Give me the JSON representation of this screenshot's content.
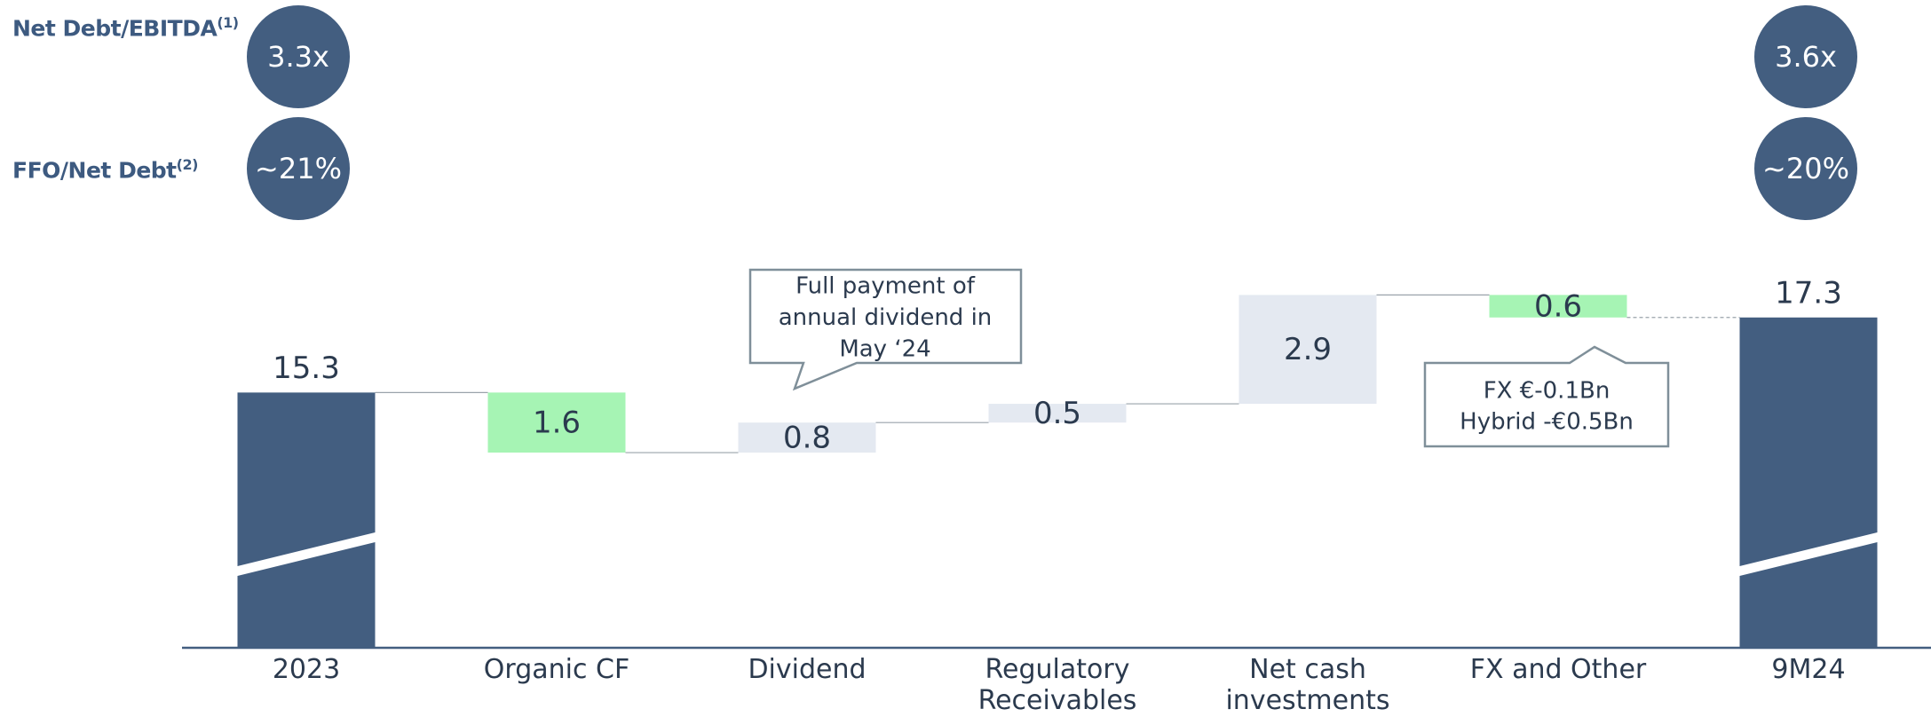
{
  "chart_data": {
    "type": "waterfall",
    "categories": [
      "2023",
      "Organic CF",
      "Dividend",
      "Regulatory Receivables",
      "Net cash investments",
      "FX and Other",
      "9M24"
    ],
    "measure": [
      "absolute",
      "relative",
      "relative",
      "relative",
      "relative",
      "relative",
      "absolute"
    ],
    "values": [
      15.3,
      -1.6,
      0.8,
      0.5,
      2.9,
      -0.6,
      17.3
    ],
    "value_labels": [
      "15.3",
      "1.6",
      "0.8",
      "0.5",
      "2.9",
      "0.6",
      "17.3"
    ],
    "colors": [
      "#435e80",
      "#a6f4b4",
      "#e4e9f1",
      "#e4e9f1",
      "#e4e9f1",
      "#a6f4b4",
      "#435e80"
    ],
    "ylim": [
      8.5,
      18.5
    ],
    "metrics": [
      {
        "label": "Net Debt/EBITDA",
        "note": "(1)",
        "start": "3.3x",
        "end": "3.6x"
      },
      {
        "label": "FFO/Net Debt",
        "note": "(2)",
        "start": "~21%",
        "end": "~20%"
      }
    ],
    "annotations": [
      {
        "lines": [
          "Full payment of",
          "annual dividend in",
          "May ‘24"
        ]
      },
      {
        "lines": [
          "FX €-0.1Bn",
          "Hybrid -€0.5Bn"
        ]
      }
    ]
  }
}
